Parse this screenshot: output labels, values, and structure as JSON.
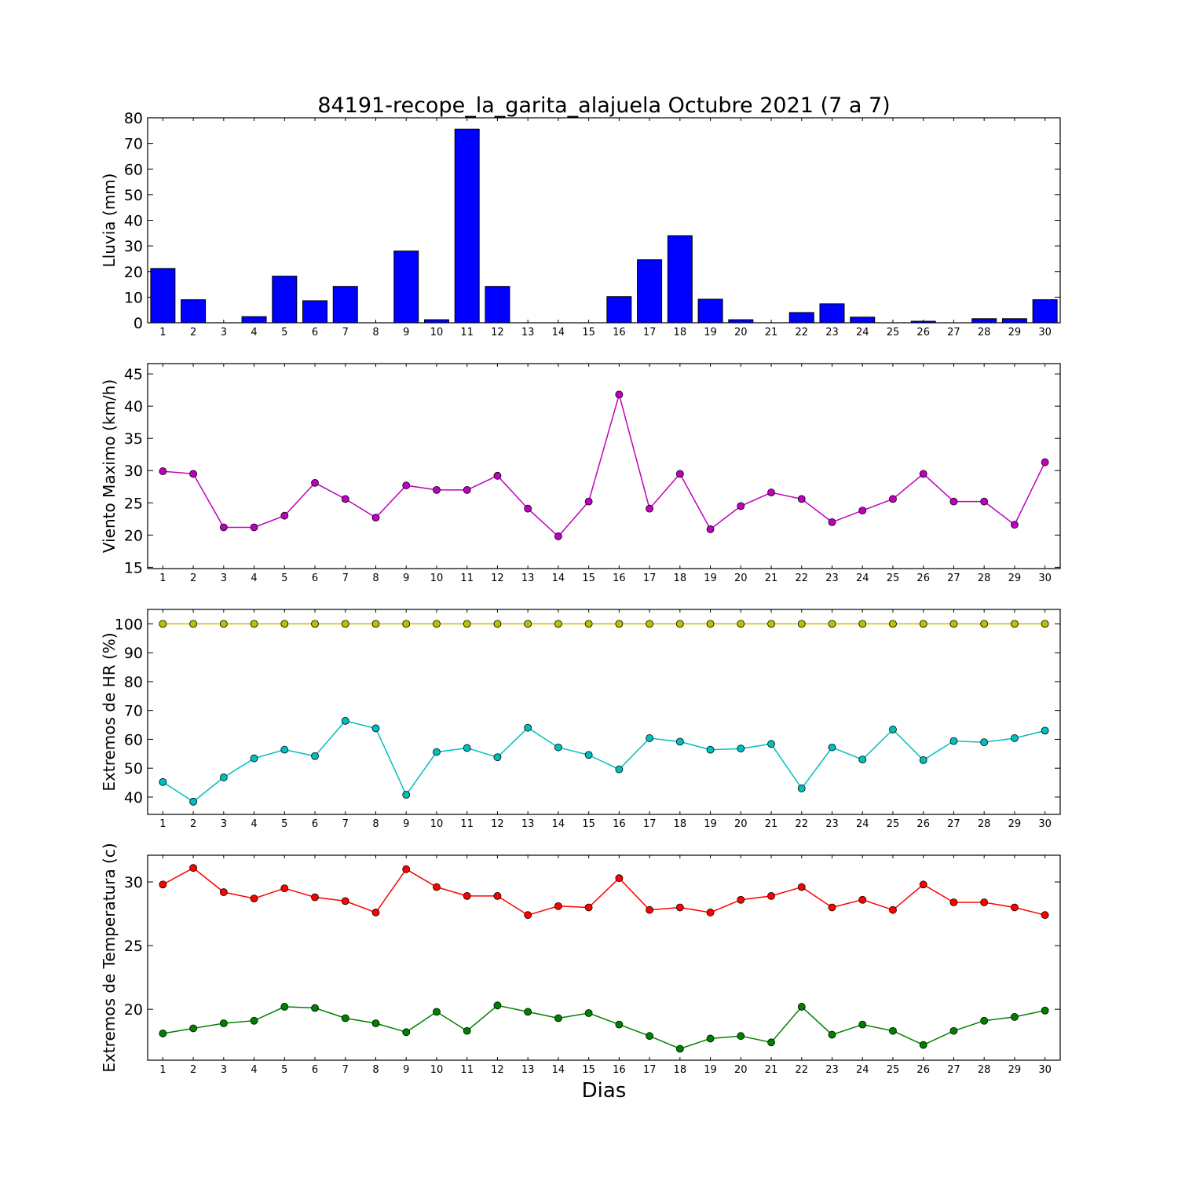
{
  "title": "84191-recope_la_garita_alajuela Octubre 2021  (7 a 7)",
  "xlabel": "Dias",
  "chart_data": [
    {
      "type": "bar",
      "name": "lluvia",
      "ylabel": "Lluvia (mm)",
      "categories": [
        1,
        2,
        3,
        4,
        5,
        6,
        7,
        8,
        9,
        10,
        11,
        12,
        13,
        14,
        15,
        16,
        17,
        18,
        19,
        20,
        21,
        22,
        23,
        24,
        25,
        26,
        27,
        28,
        29,
        30
      ],
      "ylim": [
        0,
        80
      ],
      "yticks": [
        0,
        10,
        20,
        30,
        40,
        50,
        60,
        70,
        80
      ],
      "color": "#0000ff",
      "series": [
        {
          "values": [
            21.2,
            9.0,
            0,
            2.4,
            18.2,
            8.6,
            14.2,
            0,
            28.0,
            1.2,
            75.6,
            14.2,
            0,
            0,
            0,
            10.2,
            24.6,
            34.0,
            9.2,
            1.2,
            0,
            4.0,
            7.4,
            2.2,
            0,
            0.6,
            0,
            1.6,
            1.6,
            9.0
          ]
        }
      ]
    },
    {
      "type": "line",
      "name": "viento",
      "ylabel": "Viento Maximo (km/h)",
      "x": [
        1,
        2,
        3,
        4,
        5,
        6,
        7,
        8,
        9,
        10,
        11,
        12,
        13,
        14,
        15,
        16,
        17,
        18,
        19,
        20,
        21,
        22,
        23,
        24,
        25,
        26,
        27,
        28,
        29,
        30
      ],
      "ylim": [
        14.8,
        46.6
      ],
      "yticks": [
        15,
        20,
        25,
        30,
        35,
        40,
        45
      ],
      "series": [
        {
          "color": "#bf00bf",
          "values": [
            29.9,
            29.5,
            21.2,
            21.2,
            23.0,
            28.1,
            25.6,
            22.7,
            27.7,
            27.0,
            27.0,
            29.2,
            24.1,
            19.8,
            25.2,
            41.8,
            24.1,
            29.5,
            20.9,
            24.5,
            26.6,
            25.6,
            22.0,
            23.8,
            25.6,
            29.5,
            25.2,
            25.2,
            21.6,
            31.3
          ]
        }
      ]
    },
    {
      "type": "line",
      "name": "humedad",
      "ylabel": "Extremos de HR (%)",
      "x": [
        1,
        2,
        3,
        4,
        5,
        6,
        7,
        8,
        9,
        10,
        11,
        12,
        13,
        14,
        15,
        16,
        17,
        18,
        19,
        20,
        21,
        22,
        23,
        24,
        25,
        26,
        27,
        28,
        29,
        30
      ],
      "ylim": [
        34,
        105
      ],
      "yticks": [
        40,
        50,
        60,
        70,
        80,
        90,
        100
      ],
      "series": [
        {
          "color": "#bfbf00",
          "values": [
            100,
            100,
            100,
            100,
            100,
            100,
            100,
            100,
            100,
            100,
            100,
            100,
            100,
            100,
            100,
            100,
            100,
            100,
            100,
            100,
            100,
            100,
            100,
            100,
            100,
            100,
            100,
            100,
            100,
            100
          ]
        },
        {
          "color": "#00bfbf",
          "values": [
            45.2,
            38.4,
            46.8,
            53.4,
            56.4,
            54.2,
            66.4,
            63.8,
            40.8,
            55.6,
            57.0,
            53.8,
            64.0,
            57.2,
            54.6,
            49.6,
            60.4,
            59.2,
            56.4,
            56.8,
            58.4,
            43.0,
            57.2,
            53.0,
            63.4,
            52.8,
            59.4,
            59.0,
            60.4,
            63.0
          ]
        }
      ]
    },
    {
      "type": "line",
      "name": "temperatura",
      "ylabel": "Extremos de Temperatura (c)",
      "x": [
        1,
        2,
        3,
        4,
        5,
        6,
        7,
        8,
        9,
        10,
        11,
        12,
        13,
        14,
        15,
        16,
        17,
        18,
        19,
        20,
        21,
        22,
        23,
        24,
        25,
        26,
        27,
        28,
        29,
        30
      ],
      "ylim": [
        16.0,
        32.1
      ],
      "yticks": [
        20,
        25,
        30
      ],
      "series": [
        {
          "color": "#ff0000",
          "values": [
            29.8,
            31.1,
            29.2,
            28.7,
            29.5,
            28.8,
            28.5,
            27.6,
            31.0,
            29.6,
            28.9,
            28.9,
            27.4,
            28.1,
            28.0,
            30.3,
            27.8,
            28.0,
            27.6,
            28.6,
            28.9,
            29.6,
            28.0,
            28.6,
            27.8,
            29.8,
            28.4,
            28.4,
            28.0,
            27.4
          ]
        },
        {
          "color": "#008000",
          "values": [
            18.1,
            18.5,
            18.9,
            19.1,
            20.2,
            20.1,
            19.3,
            18.9,
            18.2,
            19.8,
            18.3,
            20.3,
            19.8,
            19.3,
            19.7,
            18.8,
            17.9,
            16.9,
            17.7,
            17.9,
            17.4,
            20.2,
            18.0,
            18.8,
            18.3,
            17.2,
            18.3,
            19.1,
            19.4,
            19.9
          ]
        }
      ]
    }
  ]
}
